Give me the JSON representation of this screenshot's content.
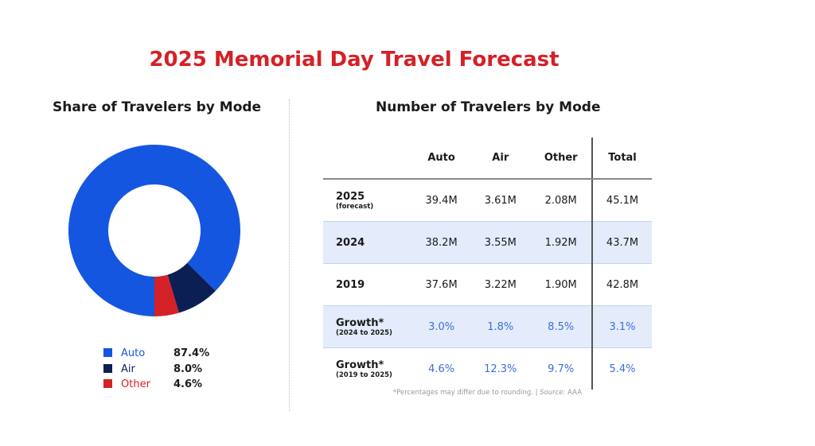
{
  "title": "2025 Memorial Day Travel Forecast",
  "colors": {
    "title": "#d42127",
    "auto": "#1556e0",
    "air": "#0c1f55",
    "other": "#d42127"
  },
  "chart_data": [
    {
      "type": "pie",
      "title": "Share of Travelers by Mode",
      "categories": [
        "Auto",
        "Air",
        "Other"
      ],
      "values": [
        87.4,
        8.0,
        4.6
      ],
      "labels": [
        "87.4%",
        "8.0%",
        "4.6%"
      ],
      "legend": "bottom"
    },
    {
      "type": "table",
      "title": "Number of Travelers by Mode",
      "columns": [
        "",
        "Auto",
        "Air",
        "Other",
        "Total"
      ],
      "rows": [
        {
          "label": "2025",
          "sub": "(forecast)",
          "cells": [
            "39.4M",
            "3.61M",
            "2.08M",
            "45.1M"
          ]
        },
        {
          "label": "2024",
          "sub": "",
          "cells": [
            "38.2M",
            "3.55M",
            "1.92M",
            "43.7M"
          ]
        },
        {
          "label": "2019",
          "sub": "",
          "cells": [
            "37.6M",
            "3.22M",
            "1.90M",
            "42.8M"
          ]
        },
        {
          "label": "Growth*",
          "sub": "(2024 to 2025)",
          "cells": [
            "3.0%",
            "1.8%",
            "8.5%",
            "3.1%"
          ]
        },
        {
          "label": "Growth*",
          "sub": "(2019 to 2025)",
          "cells": [
            "4.6%",
            "12.3%",
            "9.7%",
            "5.4%"
          ]
        }
      ]
    }
  ],
  "footnote": "*Percentages may differ due to rounding. |",
  "source_label": "Source:",
  "source": "AAA"
}
